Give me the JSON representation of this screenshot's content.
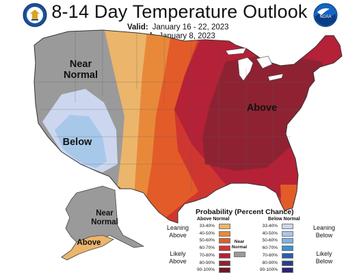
{
  "header": {
    "title": "8-14 Day Temperature Outlook",
    "valid_label": "Valid:",
    "valid_value": "January 16 - 22, 2023",
    "issued_label": "Issued:",
    "issued_value": "January 8, 2023"
  },
  "logos": {
    "left": "seal-icon",
    "right_text": "NOAA"
  },
  "map": {
    "labels": {
      "near_normal_west": "Near\nNormal",
      "below_southwest": "Below",
      "above_east": "Above",
      "near_normal_alaska": "Near\nNormal",
      "above_alaska": "Above"
    }
  },
  "legend": {
    "title": "Probability (Percent Chance)",
    "above_header": "Above Normal",
    "below_header": "Below Normal",
    "near_normal_label": "Near\nNormal",
    "leaning_above": "Leaning\nAbove",
    "likely_above": "Likely\nAbove",
    "leaning_below": "Leaning\nBelow",
    "likely_below": "Likely\nBelow",
    "above_rows": [
      {
        "label": "33-40%",
        "color": "#ebb56b"
      },
      {
        "label": "40-50%",
        "color": "#e8893a"
      },
      {
        "label": "50-60%",
        "color": "#e35b29"
      },
      {
        "label": "60-70%",
        "color": "#cf3630"
      },
      {
        "label": "70-80%",
        "color": "#b52136"
      },
      {
        "label": "80-90%",
        "color": "#8e2232"
      },
      {
        "label": "90-100%",
        "color": "#6d1a25"
      }
    ],
    "below_rows": [
      {
        "label": "33-40%",
        "color": "#ccd7ef"
      },
      {
        "label": "40-50%",
        "color": "#a8c8ea"
      },
      {
        "label": "50-60%",
        "color": "#7fb2e2"
      },
      {
        "label": "60-70%",
        "color": "#3f8fcf"
      },
      {
        "label": "70-80%",
        "color": "#2460ad"
      },
      {
        "label": "80-90%",
        "color": "#263f8e"
      },
      {
        "label": "90-100%",
        "color": "#2b2572"
      }
    ],
    "near_normal_color": "#9a9a9a"
  }
}
